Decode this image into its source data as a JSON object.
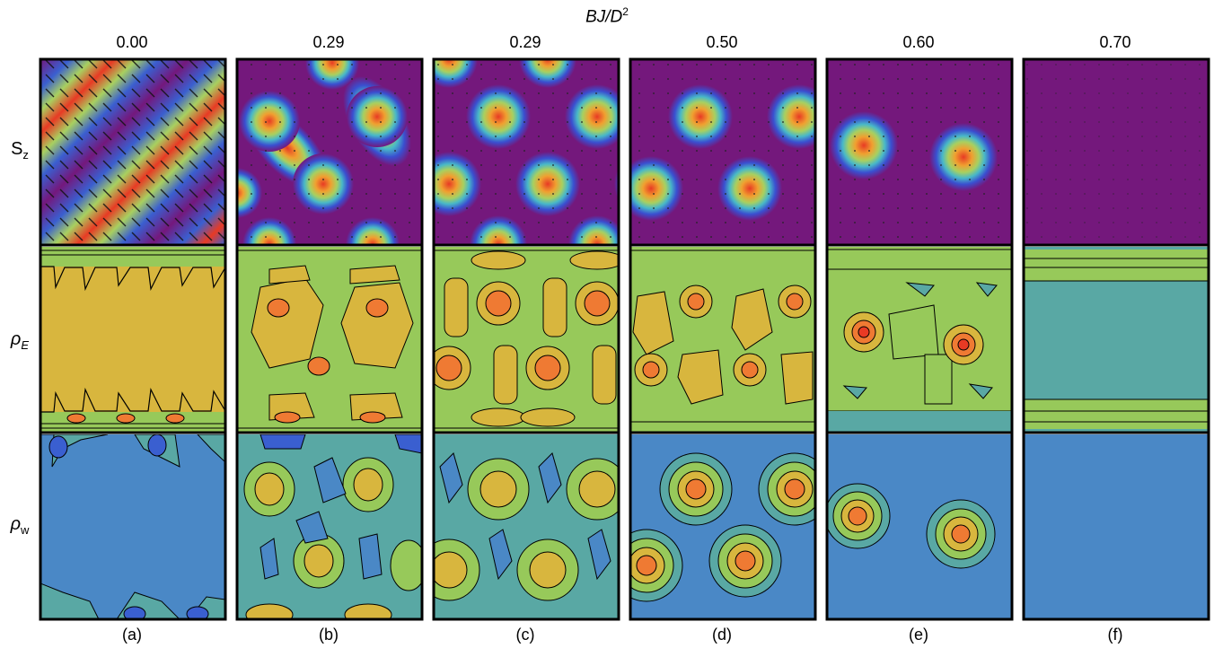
{
  "title": {
    "text": "BJ/D",
    "superscript": "2"
  },
  "columns": [
    {
      "value": "0.00",
      "panel": "(a)"
    },
    {
      "value": "0.29",
      "panel": "(b)"
    },
    {
      "value": "0.29",
      "panel": "(c)"
    },
    {
      "value": "0.50",
      "panel": "(d)"
    },
    {
      "value": "0.60",
      "panel": "(e)"
    },
    {
      "value": "0.70",
      "panel": "(f)"
    }
  ],
  "rows": [
    {
      "label": "S",
      "subscript": "z"
    },
    {
      "label": "ρ",
      "subscript": "E"
    },
    {
      "label": "ρ",
      "subscript": "w"
    }
  ],
  "colors": {
    "background_purple": "#74187c",
    "skyrmion_core": "#e83a24",
    "orange": "#ef7a33",
    "yellow": "#d8b63e",
    "green": "#97c95a",
    "teal": "#59a8a4",
    "blue": "#4a88c6",
    "dark_blue": "#3a5fd0"
  }
}
